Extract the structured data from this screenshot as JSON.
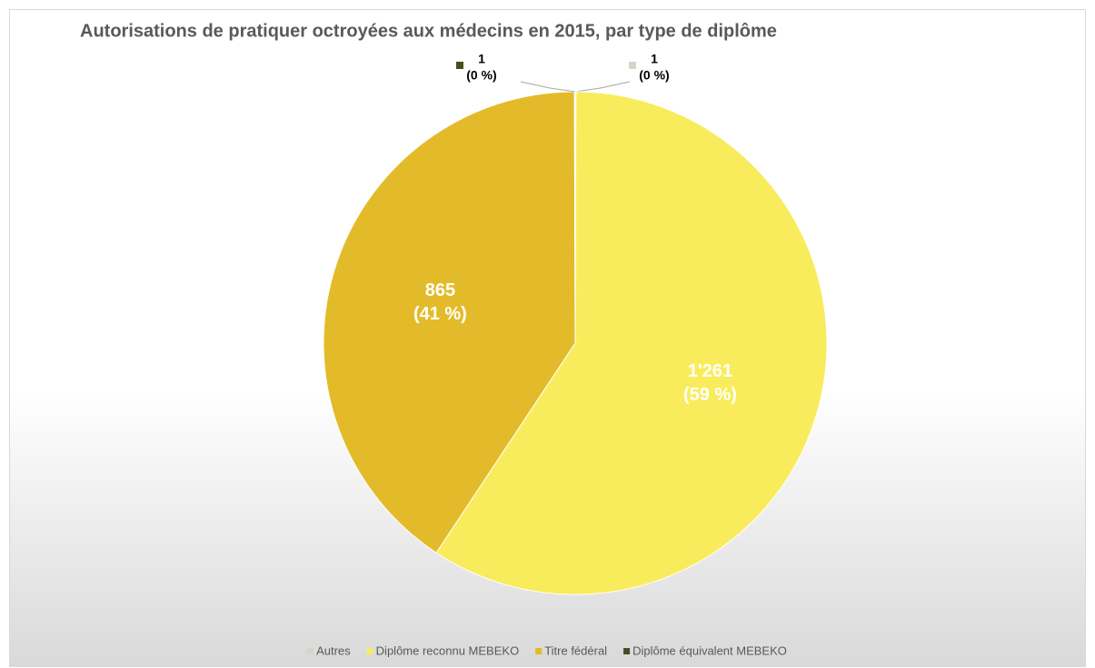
{
  "chart_data": {
    "type": "pie",
    "title": "Autorisations de pratiquer octroyées aux médecins en 2015, par type de diplôme",
    "categories": [
      "Autres",
      "Diplôme reconnu MEBEKO",
      "Titre fédéral",
      "Diplôme équivalent MEBEKO"
    ],
    "values": [
      1,
      1261,
      865,
      1
    ],
    "value_labels": [
      "1",
      "1'261",
      "865",
      "1"
    ],
    "percents": [
      0,
      59,
      41,
      0
    ],
    "percent_labels": [
      "(0 %)",
      "(59 %)",
      "(41 %)",
      "(0 %)"
    ],
    "colors": [
      "#d3d6c8",
      "#f9ec5c",
      "#e3bb2a",
      "#4b4b22"
    ],
    "legend": "bottom"
  }
}
